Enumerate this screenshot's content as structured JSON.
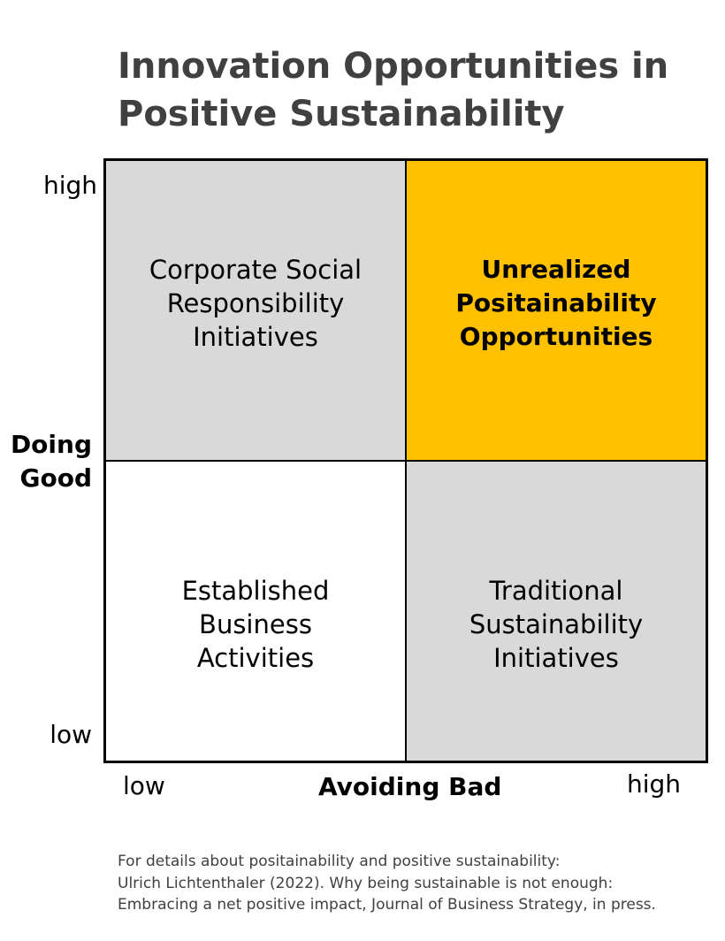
{
  "title": {
    "line1": "Innovation Opportunities in",
    "line2": "Positive Sustainability"
  },
  "y_axis": {
    "label_line1": "Doing",
    "label_line2": "Good",
    "high": "high",
    "low": "low"
  },
  "x_axis": {
    "label": "Avoiding Bad",
    "low": "low",
    "high": "high"
  },
  "quadrants": {
    "top_left": {
      "lines": [
        "Corporate Social",
        "Responsibility",
        "Initiatives"
      ],
      "color": "#d9d9d9"
    },
    "top_right": {
      "lines": [
        "Unrealized",
        "Positainability",
        "Opportunities"
      ],
      "color": "#ffc000"
    },
    "bottom_left": {
      "lines": [
        "Established",
        "Business",
        "Activities"
      ],
      "color": "#ffffff"
    },
    "bottom_right": {
      "lines": [
        "Traditional",
        "Sustainability",
        "Initiatives"
      ],
      "color": "#d9d9d9"
    }
  },
  "source": {
    "line1": "For details about positainability and positive sustainability:",
    "line2": "Ulrich Lichtenthaler (2022). Why being sustainable is not enough:",
    "line3": "Embracing a net positive impact, Journal of Business Strategy, in press."
  }
}
